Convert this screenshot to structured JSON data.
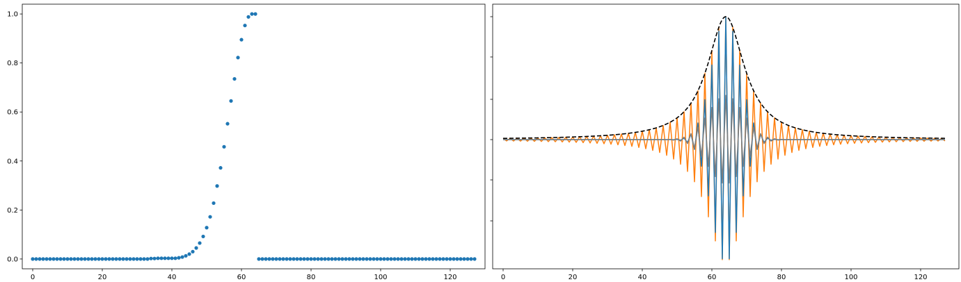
{
  "chart_data": [
    {
      "type": "scatter",
      "xlim": [
        -3,
        130
      ],
      "ylim": [
        -0.04,
        1.04
      ],
      "x_ticks": [
        0,
        20,
        40,
        60,
        80,
        100,
        120
      ],
      "y_ticks": [
        0.0,
        0.2,
        0.4,
        0.6,
        0.8,
        1.0
      ],
      "x_tick_labels": [
        "0",
        "20",
        "40",
        "60",
        "80",
        "100",
        "120"
      ],
      "y_tick_labels": [
        "0.0",
        "0.2",
        "0.4",
        "0.6",
        "0.8",
        "1.0"
      ],
      "color": "#1f77b4",
      "series": [
        {
          "x": [
            34,
            35,
            36,
            37,
            38,
            39,
            40,
            41,
            42,
            43,
            44,
            45,
            46,
            47,
            48,
            49,
            50,
            51,
            52,
            53,
            54,
            55,
            56,
            57,
            58,
            59,
            60,
            61,
            62,
            63,
            64
          ],
          "y": [
            0.002,
            0.002,
            0.003,
            0.003,
            0.003,
            0.003,
            0.003,
            0.003,
            0.005,
            0.008,
            0.013,
            0.02,
            0.03,
            0.045,
            0.065,
            0.092,
            0.128,
            0.172,
            0.228,
            0.298,
            0.372,
            0.458,
            0.552,
            0.645,
            0.735,
            0.822,
            0.895,
            0.953,
            0.988,
            1.0,
            1.0
          ],
          "baseline_value": 0.0,
          "baseline_x_ranges": [
            [
              0,
              33
            ],
            [
              65,
              127
            ]
          ]
        }
      ]
    },
    {
      "type": "line",
      "xlim": [
        -3,
        131
      ],
      "x_ticks": [
        0,
        20,
        40,
        60,
        80,
        100,
        120
      ],
      "x_tick_labels": [
        "0",
        "20",
        "40",
        "60",
        "80",
        "100",
        "120"
      ],
      "y_tick_count": 6,
      "center_x": 64,
      "series": [
        {
          "role": "envelope",
          "color": "#000000",
          "dashed": true,
          "peak": 1.0,
          "lorentz_width": 6.5
        },
        {
          "role": "wide-oscillation",
          "color": "#ff7f0e",
          "peak": 1.0,
          "lorentz_width": 6.5
        },
        {
          "role": "narrow-oscillation",
          "color": "#1f77b4",
          "peak": 1.0,
          "gauss_sigma": 4.0
        },
        {
          "role": "overlap-oscillation",
          "color": "#7f7f7f",
          "peak": 0.36,
          "gauss_sigma": 5.0
        }
      ]
    }
  ]
}
